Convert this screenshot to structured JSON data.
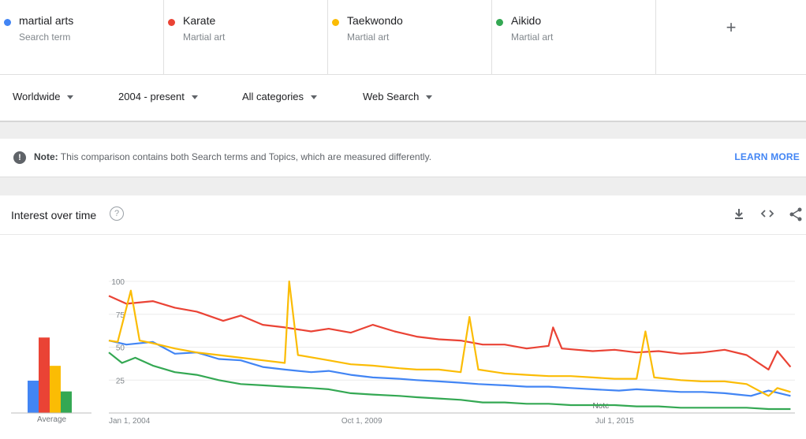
{
  "terms": [
    {
      "name": "martial arts",
      "kind": "Search term",
      "color": "#4285f4"
    },
    {
      "name": "Karate",
      "kind": "Martial art",
      "color": "#ea4335"
    },
    {
      "name": "Taekwondo",
      "kind": "Martial art",
      "color": "#fbbc04"
    },
    {
      "name": "Aikido",
      "kind": "Martial art",
      "color": "#34a853"
    }
  ],
  "add_symbol": "+",
  "filters": {
    "region": "Worldwide",
    "time": "2004 - present",
    "category": "All categories",
    "search_type": "Web Search"
  },
  "note": {
    "label": "Note:",
    "text": "This comparison contains both Search terms and Topics, which are measured differently.",
    "link": "LEARN MORE"
  },
  "card": {
    "title": "Interest over time",
    "help_symbol": "?",
    "icons": [
      "download-icon",
      "embed-icon",
      "share-icon"
    ],
    "average_label": "Average",
    "note_marker": "Note"
  },
  "chart_data": {
    "type": "line",
    "yticks": [
      "100",
      "75",
      "50",
      "25"
    ],
    "ylim": [
      0,
      100
    ],
    "xticks": [
      "Jan 1, 2004",
      "Oct 1, 2009",
      "Jul 1, 2015"
    ],
    "x_start": "2004-01",
    "x_end": "2019-06",
    "averages": [
      {
        "name": "martial arts",
        "value": 24
      },
      {
        "name": "Karate",
        "value": 56
      },
      {
        "name": "Taekwondo",
        "value": 35
      },
      {
        "name": "Aikido",
        "value": 16
      }
    ],
    "series": [
      {
        "name": "martial arts",
        "color": "#4285f4",
        "values": [
          [
            2004.0,
            55
          ],
          [
            2004.4,
            52
          ],
          [
            2005.0,
            54
          ],
          [
            2005.5,
            45
          ],
          [
            2006.0,
            46
          ],
          [
            2006.5,
            41
          ],
          [
            2007.0,
            40
          ],
          [
            2007.5,
            35
          ],
          [
            2008.0,
            33
          ],
          [
            2008.6,
            31
          ],
          [
            2009.0,
            32
          ],
          [
            2009.5,
            29
          ],
          [
            2010.0,
            27
          ],
          [
            2010.6,
            26
          ],
          [
            2011.0,
            25
          ],
          [
            2011.5,
            24
          ],
          [
            2012.0,
            23
          ],
          [
            2012.4,
            22
          ],
          [
            2013.0,
            21
          ],
          [
            2013.5,
            20
          ],
          [
            2014.0,
            20
          ],
          [
            2014.5,
            19
          ],
          [
            2015.0,
            18
          ],
          [
            2015.6,
            17
          ],
          [
            2016.0,
            18
          ],
          [
            2016.5,
            17
          ],
          [
            2017.0,
            16
          ],
          [
            2017.5,
            16
          ],
          [
            2018.0,
            15
          ],
          [
            2018.3,
            14
          ],
          [
            2018.6,
            13
          ],
          [
            2019.0,
            17
          ],
          [
            2019.5,
            13
          ]
        ]
      },
      {
        "name": "Karate",
        "color": "#ea4335",
        "values": [
          [
            2004.0,
            89
          ],
          [
            2004.4,
            83
          ],
          [
            2005.0,
            85
          ],
          [
            2005.5,
            80
          ],
          [
            2006.0,
            77
          ],
          [
            2006.6,
            70
          ],
          [
            2007.0,
            74
          ],
          [
            2007.5,
            67
          ],
          [
            2008.0,
            65
          ],
          [
            2008.6,
            62
          ],
          [
            2009.0,
            64
          ],
          [
            2009.5,
            61
          ],
          [
            2010.0,
            67
          ],
          [
            2010.5,
            62
          ],
          [
            2011.0,
            58
          ],
          [
            2011.5,
            56
          ],
          [
            2012.0,
            55
          ],
          [
            2012.5,
            52
          ],
          [
            2013.0,
            52
          ],
          [
            2013.5,
            49
          ],
          [
            2014.0,
            51
          ],
          [
            2014.1,
            65
          ],
          [
            2014.3,
            49
          ],
          [
            2015.0,
            47
          ],
          [
            2015.5,
            48
          ],
          [
            2016.0,
            46
          ],
          [
            2016.5,
            47
          ],
          [
            2017.0,
            45
          ],
          [
            2017.5,
            46
          ],
          [
            2018.0,
            48
          ],
          [
            2018.5,
            44
          ],
          [
            2019.0,
            33
          ],
          [
            2019.2,
            47
          ],
          [
            2019.5,
            35
          ]
        ]
      },
      {
        "name": "Taekwondo",
        "color": "#fbbc04",
        "values": [
          [
            2004.0,
            55
          ],
          [
            2004.2,
            54
          ],
          [
            2004.5,
            93
          ],
          [
            2004.7,
            55
          ],
          [
            2005.0,
            53
          ],
          [
            2005.5,
            49
          ],
          [
            2006.0,
            46
          ],
          [
            2006.5,
            44
          ],
          [
            2007.0,
            42
          ],
          [
            2007.5,
            40
          ],
          [
            2008.0,
            38
          ],
          [
            2008.1,
            100
          ],
          [
            2008.3,
            44
          ],
          [
            2009.0,
            40
          ],
          [
            2009.5,
            37
          ],
          [
            2010.0,
            36
          ],
          [
            2010.6,
            34
          ],
          [
            2011.0,
            33
          ],
          [
            2011.5,
            33
          ],
          [
            2012.0,
            31
          ],
          [
            2012.2,
            73
          ],
          [
            2012.4,
            33
          ],
          [
            2013.0,
            30
          ],
          [
            2013.5,
            29
          ],
          [
            2014.0,
            28
          ],
          [
            2014.5,
            28
          ],
          [
            2015.0,
            27
          ],
          [
            2015.5,
            26
          ],
          [
            2016.0,
            26
          ],
          [
            2016.2,
            62
          ],
          [
            2016.4,
            27
          ],
          [
            2017.0,
            25
          ],
          [
            2017.5,
            24
          ],
          [
            2018.0,
            24
          ],
          [
            2018.5,
            22
          ],
          [
            2019.0,
            13
          ],
          [
            2019.2,
            19
          ],
          [
            2019.5,
            16
          ]
        ]
      },
      {
        "name": "Aikido",
        "color": "#34a853",
        "values": [
          [
            2004.0,
            46
          ],
          [
            2004.3,
            38
          ],
          [
            2004.6,
            42
          ],
          [
            2005.0,
            36
          ],
          [
            2005.5,
            31
          ],
          [
            2006.0,
            29
          ],
          [
            2006.5,
            25
          ],
          [
            2007.0,
            22
          ],
          [
            2007.5,
            21
          ],
          [
            2008.0,
            20
          ],
          [
            2008.6,
            19
          ],
          [
            2009.0,
            18
          ],
          [
            2009.5,
            15
          ],
          [
            2010.0,
            14
          ],
          [
            2010.6,
            13
          ],
          [
            2011.0,
            12
          ],
          [
            2011.5,
            11
          ],
          [
            2012.0,
            10
          ],
          [
            2012.5,
            8
          ],
          [
            2013.0,
            8
          ],
          [
            2013.5,
            7
          ],
          [
            2014.0,
            7
          ],
          [
            2014.5,
            6
          ],
          [
            2015.0,
            6
          ],
          [
            2015.5,
            6
          ],
          [
            2016.0,
            5
          ],
          [
            2016.5,
            5
          ],
          [
            2017.0,
            4
          ],
          [
            2017.5,
            4
          ],
          [
            2018.0,
            4
          ],
          [
            2018.5,
            4
          ],
          [
            2019.0,
            3
          ],
          [
            2019.5,
            3
          ]
        ]
      }
    ]
  }
}
